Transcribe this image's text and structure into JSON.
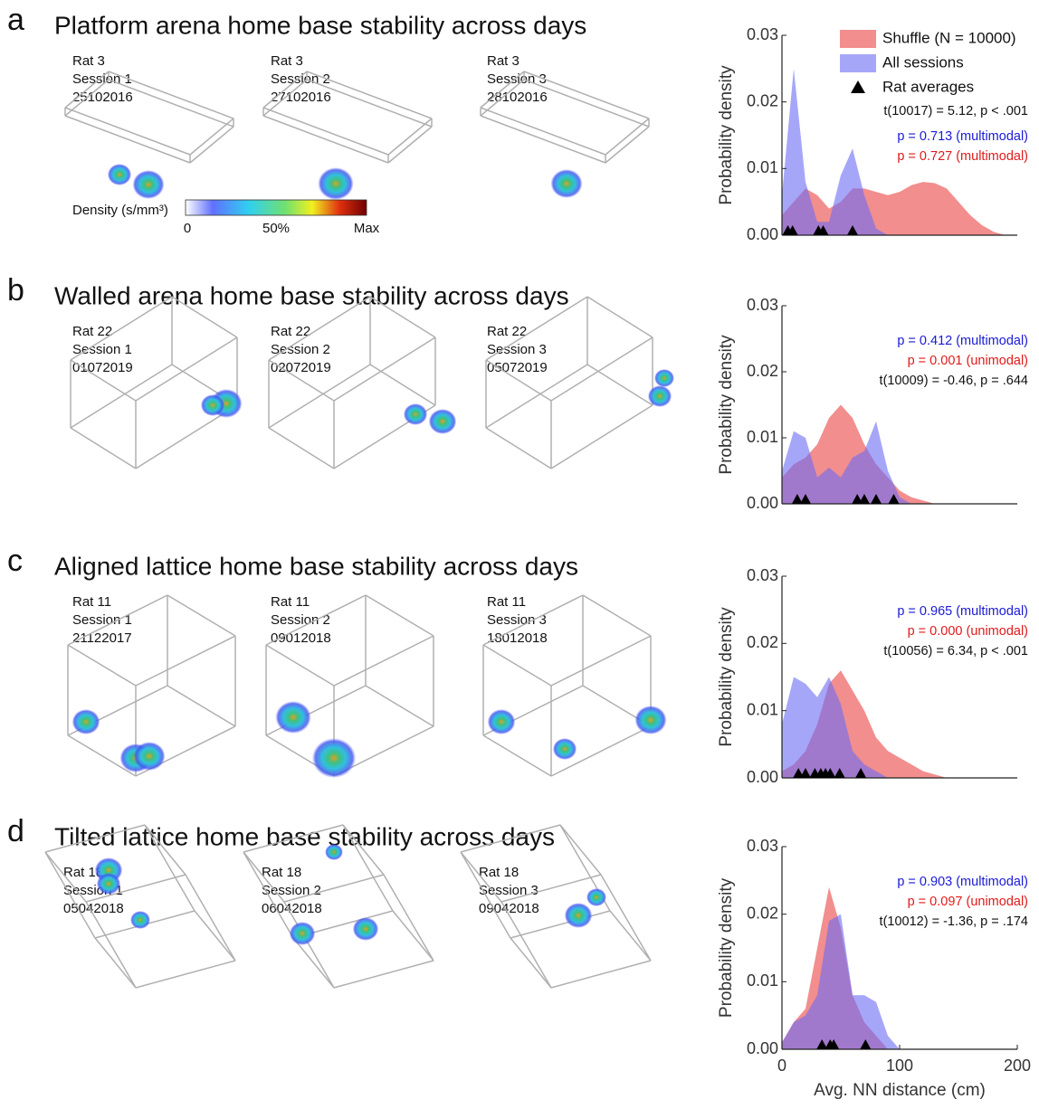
{
  "panels": [
    {
      "letter": "a",
      "title": "Platform arena home base stability across days",
      "sessions": [
        {
          "rat": "Rat 3",
          "session": "Session 1",
          "date": "25102016"
        },
        {
          "rat": "Rat 3",
          "session": "Session 2",
          "date": "27102016"
        },
        {
          "rat": "Rat 3",
          "session": "Session 3",
          "date": "28102016"
        }
      ]
    },
    {
      "letter": "b",
      "title": "Walled arena home base stability across days",
      "sessions": [
        {
          "rat": "Rat 22",
          "session": "Session 1",
          "date": "01072019"
        },
        {
          "rat": "Rat 22",
          "session": "Session 2",
          "date": "02072019"
        },
        {
          "rat": "Rat 22",
          "session": "Session 3",
          "date": "05072019"
        }
      ]
    },
    {
      "letter": "c",
      "title": "Aligned lattice home base stability across days",
      "sessions": [
        {
          "rat": "Rat 11",
          "session": "Session 1",
          "date": "21122017"
        },
        {
          "rat": "Rat 11",
          "session": "Session 2",
          "date": "09012018"
        },
        {
          "rat": "Rat 11",
          "session": "Session 3",
          "date": "18012018"
        }
      ]
    },
    {
      "letter": "d",
      "title": "Tilted lattice home base stability across days",
      "sessions": [
        {
          "rat": "Rat 18",
          "session": "Session 1",
          "date": "05042018"
        },
        {
          "rat": "Rat 18",
          "session": "Session 2",
          "date": "06042018"
        },
        {
          "rat": "Rat 18",
          "session": "Session 3",
          "date": "09042018"
        }
      ]
    }
  ],
  "colorbar": {
    "label": "Density (s/mm³)",
    "ticks": [
      "0",
      "50%",
      "Max"
    ]
  },
  "chart_data": [
    {
      "type": "area",
      "ylabel": "Probability density",
      "xlim": [
        0,
        200
      ],
      "ylim": [
        0,
        0.03
      ],
      "yticks": [
        {
          "value": 0,
          "label": "0.00"
        },
        {
          "value": 0.01,
          "label": "0.01"
        },
        {
          "value": 0.02,
          "label": "0.02"
        },
        {
          "value": 0.03,
          "label": "0.03"
        }
      ],
      "x": [
        0,
        10,
        20,
        30,
        40,
        50,
        60,
        70,
        80,
        90,
        100,
        110,
        120,
        130,
        140,
        150,
        160,
        170,
        180,
        190
      ],
      "series": [
        {
          "name": "Shuffle (N = 10000)",
          "color": "#f07a7a",
          "values": [
            0.003,
            0.005,
            0.007,
            0.006,
            0.004,
            0.005,
            0.007,
            0.007,
            0.0065,
            0.006,
            0.0065,
            0.0075,
            0.008,
            0.0078,
            0.007,
            0.005,
            0.003,
            0.0015,
            0.0005,
            0
          ]
        },
        {
          "name": "All sessions",
          "color": "#6a6af5",
          "values": [
            0.006,
            0.025,
            0.008,
            0.002,
            0.002,
            0.009,
            0.013,
            0.006,
            0.001,
            0,
            0,
            0,
            0,
            0,
            0,
            0,
            0,
            0,
            0,
            0
          ]
        }
      ],
      "markers": {
        "name": "Rat averages",
        "x": [
          5,
          9,
          31,
          35,
          60
        ]
      },
      "annotations": [
        {
          "text": "t(10017) = 5.12, p < .001",
          "color": "#111111"
        },
        {
          "text": "p = 0.713 (multimodal)",
          "color": "#1a1ad6"
        },
        {
          "text": "p = 0.727 (multimodal)",
          "color": "#e01a1a"
        }
      ]
    },
    {
      "type": "area",
      "ylabel": "Probability density",
      "xlim": [
        0,
        200
      ],
      "ylim": [
        0,
        0.03
      ],
      "yticks": [
        {
          "value": 0,
          "label": "0.00"
        },
        {
          "value": 0.01,
          "label": "0.01"
        },
        {
          "value": 0.02,
          "label": "0.02"
        },
        {
          "value": 0.03,
          "label": "0.03"
        }
      ],
      "x": [
        0,
        10,
        20,
        30,
        40,
        50,
        60,
        70,
        80,
        90,
        100,
        110,
        120,
        130,
        140,
        150,
        160,
        170,
        180,
        190
      ],
      "series": [
        {
          "color": "#f07a7a",
          "values": [
            0.004,
            0.006,
            0.007,
            0.009,
            0.013,
            0.015,
            0.013,
            0.009,
            0.006,
            0.004,
            0.002,
            0.001,
            0.0005,
            0,
            0,
            0,
            0,
            0,
            0,
            0
          ]
        },
        {
          "color": "#6a6af5",
          "values": [
            0.005,
            0.011,
            0.01,
            0.004,
            0.0055,
            0.004,
            0.007,
            0.008,
            0.0125,
            0.005,
            0.001,
            0,
            0,
            0,
            0,
            0,
            0,
            0,
            0,
            0
          ]
        }
      ],
      "markers": {
        "x": [
          13,
          20,
          64,
          70,
          80,
          95
        ]
      },
      "annotations": [
        {
          "text": "p = 0.412 (multimodal)",
          "color": "#1a1ad6"
        },
        {
          "text": "p = 0.001 (unimodal)",
          "color": "#e01a1a"
        },
        {
          "text": "t(10009) = -0.46, p = .644",
          "color": "#111111"
        }
      ]
    },
    {
      "type": "area",
      "ylabel": "Probability density",
      "xlim": [
        0,
        200
      ],
      "ylim": [
        0,
        0.03
      ],
      "yticks": [
        {
          "value": 0,
          "label": "0.00"
        },
        {
          "value": 0.01,
          "label": "0.01"
        },
        {
          "value": 0.02,
          "label": "0.02"
        },
        {
          "value": 0.03,
          "label": "0.03"
        }
      ],
      "x": [
        0,
        10,
        20,
        30,
        40,
        50,
        60,
        70,
        80,
        90,
        100,
        110,
        120,
        130,
        140,
        150,
        160,
        170,
        180,
        190
      ],
      "series": [
        {
          "color": "#f07a7a",
          "values": [
            0.001,
            0.002,
            0.004,
            0.008,
            0.014,
            0.016,
            0.013,
            0.01,
            0.006,
            0.004,
            0.003,
            0.002,
            0.001,
            0.0005,
            0,
            0,
            0,
            0,
            0,
            0
          ]
        },
        {
          "color": "#6a6af5",
          "values": [
            0.008,
            0.015,
            0.014,
            0.012,
            0.015,
            0.011,
            0.004,
            0.002,
            0.001,
            0,
            0,
            0,
            0,
            0,
            0,
            0,
            0,
            0,
            0,
            0
          ]
        }
      ],
      "markers": {
        "x": [
          14,
          20,
          28,
          33,
          37,
          41,
          49,
          67
        ]
      },
      "annotations": [
        {
          "text": "p = 0.965 (multimodal)",
          "color": "#1a1ad6"
        },
        {
          "text": "p = 0.000 (unimodal)",
          "color": "#e01a1a"
        },
        {
          "text": "t(10056) = 6.34, p < .001",
          "color": "#111111"
        }
      ]
    },
    {
      "type": "area",
      "ylabel": "Probability density",
      "xlabel": "Avg. NN distance (cm)",
      "xlim": [
        0,
        200
      ],
      "ylim": [
        0,
        0.03
      ],
      "xticks": [
        0,
        100,
        200
      ],
      "yticks": [
        {
          "value": 0,
          "label": "0.00"
        },
        {
          "value": 0.01,
          "label": "0.01"
        },
        {
          "value": 0.02,
          "label": "0.02"
        },
        {
          "value": 0.03,
          "label": "0.03"
        }
      ],
      "x": [
        0,
        10,
        20,
        30,
        40,
        50,
        60,
        70,
        80,
        90,
        100,
        110,
        120,
        130,
        140,
        150,
        160,
        170,
        180,
        190
      ],
      "series": [
        {
          "color": "#f07a7a",
          "values": [
            0.001,
            0.004,
            0.006,
            0.015,
            0.024,
            0.018,
            0.008,
            0.004,
            0.002,
            0,
            0,
            0,
            0,
            0,
            0,
            0,
            0,
            0,
            0,
            0
          ]
        },
        {
          "color": "#6a6af5",
          "values": [
            0.001,
            0.004,
            0.005,
            0.008,
            0.019,
            0.02,
            0.008,
            0.008,
            0.007,
            0.002,
            0,
            0,
            0,
            0,
            0,
            0,
            0,
            0,
            0,
            0
          ]
        }
      ],
      "markers": {
        "x": [
          34,
          41,
          44,
          71
        ]
      },
      "annotations": [
        {
          "text": "p = 0.903 (multimodal)",
          "color": "#1a1ad6"
        },
        {
          "text": "p = 0.097 (unimodal)",
          "color": "#e01a1a"
        },
        {
          "text": "t(10012) = -1.36, p = .174",
          "color": "#111111"
        }
      ]
    }
  ]
}
